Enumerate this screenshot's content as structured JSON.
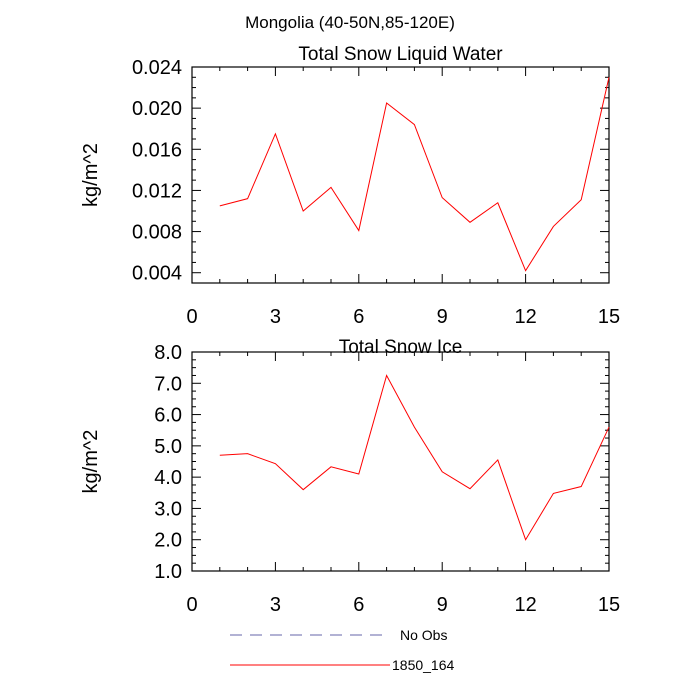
{
  "suptitle": "Mongolia (40-50N,85-120E)",
  "chart_data": [
    {
      "type": "line",
      "title": "Total Snow Liquid Water",
      "xlabel": "",
      "ylabel": "kg/m^2",
      "xlim": [
        0,
        15
      ],
      "ylim": [
        0.003,
        0.024
      ],
      "x_ticks": [
        0,
        3,
        6,
        9,
        12,
        15
      ],
      "x_tick_labels": [
        "0",
        "3",
        "6",
        "9",
        "12",
        "15"
      ],
      "y_ticks": [
        0.004,
        0.008,
        0.012,
        0.016,
        0.02,
        0.024
      ],
      "y_tick_labels": [
        "0.004",
        "0.008",
        "0.012",
        "0.016",
        "0.020",
        "0.024"
      ],
      "x": [
        1,
        2,
        3,
        4,
        5,
        6,
        7,
        8,
        9,
        10,
        11,
        12,
        13,
        14,
        15
      ],
      "series": [
        {
          "name": "1850_164",
          "color": "#ff0000",
          "values": [
            0.0105,
            0.0112,
            0.0175,
            0.01,
            0.0123,
            0.0081,
            0.0205,
            0.0184,
            0.0113,
            0.0089,
            0.0108,
            0.0042,
            0.0085,
            0.0111,
            0.023
          ]
        }
      ],
      "grid": false
    },
    {
      "type": "line",
      "title": "Total Snow Ice",
      "xlabel": "",
      "ylabel": "kg/m^2",
      "xlim": [
        0,
        15
      ],
      "ylim": [
        1.0,
        8.0
      ],
      "x_ticks": [
        0,
        3,
        6,
        9,
        12,
        15
      ],
      "x_tick_labels": [
        "0",
        "3",
        "6",
        "9",
        "12",
        "15"
      ],
      "y_ticks": [
        1,
        2,
        3,
        4,
        5,
        6,
        7,
        8
      ],
      "y_tick_labels": [
        "1.0",
        "2.0",
        "3.0",
        "4.0",
        "5.0",
        "6.0",
        "7.0",
        "8.0"
      ],
      "x": [
        1,
        2,
        3,
        4,
        5,
        6,
        7,
        8,
        9,
        10,
        11,
        12,
        13,
        14,
        15
      ],
      "series": [
        {
          "name": "1850_164",
          "color": "#ff0000",
          "values": [
            4.7,
            4.75,
            4.43,
            3.6,
            4.33,
            4.1,
            7.25,
            5.6,
            4.17,
            3.63,
            4.55,
            2.0,
            3.48,
            3.7,
            5.6
          ]
        }
      ],
      "grid": false
    }
  ],
  "legend": [
    {
      "label": "No Obs",
      "color": "#6666aa",
      "style": "dashed"
    },
    {
      "label": "1850_164",
      "color": "#ff0000",
      "style": "solid"
    }
  ]
}
